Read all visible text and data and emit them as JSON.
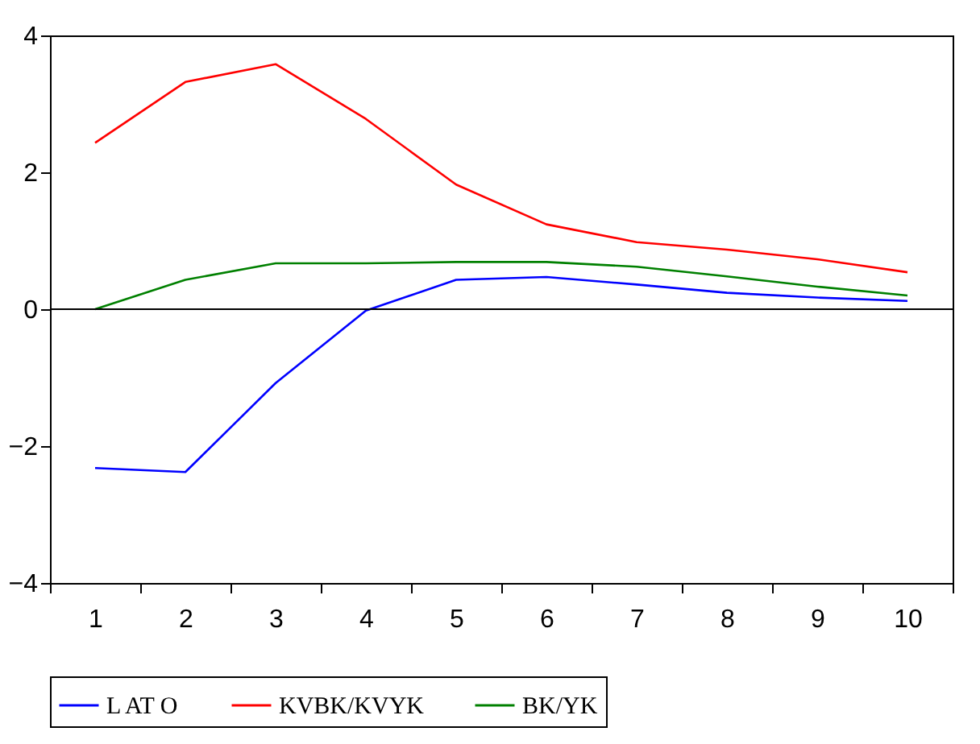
{
  "chart_data": {
    "type": "line",
    "categories": [
      "1",
      "2",
      "3",
      "4",
      "5",
      "6",
      "7",
      "8",
      "9",
      "10"
    ],
    "series": [
      {
        "name": "L AT O",
        "color": "#0000ff",
        "values": [
          -2.32,
          -2.38,
          -1.08,
          -0.02,
          0.43,
          0.47,
          0.36,
          0.24,
          0.17,
          0.12
        ]
      },
      {
        "name": "KVBK/KVYK",
        "color": "#ff0000",
        "values": [
          2.43,
          3.32,
          3.58,
          2.78,
          1.82,
          1.24,
          0.98,
          0.87,
          0.73,
          0.54
        ]
      },
      {
        "name": "BK/YK",
        "color": "#008000",
        "values": [
          0,
          0.43,
          0.67,
          0.67,
          0.69,
          0.69,
          0.62,
          0.48,
          0.33,
          0.2
        ]
      }
    ],
    "ylim": [
      -4,
      4
    ],
    "yticks": [
      -4,
      -2,
      0,
      2,
      4
    ],
    "ref_lines": [
      {
        "axis": "y",
        "value": 0,
        "color": "#000000"
      }
    ],
    "legend": "bottom",
    "grid": false
  }
}
